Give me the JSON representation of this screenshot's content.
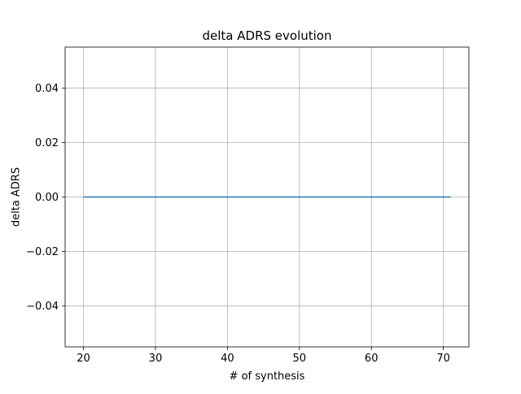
{
  "chart_data": {
    "type": "line",
    "title": "delta ADRS evolution",
    "xlabel": "# of synthesis",
    "ylabel": "delta ADRS",
    "xlim": [
      17.45,
      73.55
    ],
    "ylim": [
      -0.055,
      0.055
    ],
    "x_ticks": [
      20,
      30,
      40,
      50,
      60,
      70
    ],
    "y_ticks": [
      -0.04,
      -0.02,
      0.0,
      0.02,
      0.04
    ],
    "x_tick_labels": [
      "20",
      "30",
      "40",
      "50",
      "60",
      "70"
    ],
    "y_tick_labels": [
      "−0.04",
      "−0.02",
      "0.00",
      "0.02",
      "0.04"
    ],
    "grid": true,
    "series": [
      {
        "color": "#1f77b4",
        "x": [
          20,
          71
        ],
        "y": [
          0.0,
          0.0
        ]
      }
    ]
  }
}
